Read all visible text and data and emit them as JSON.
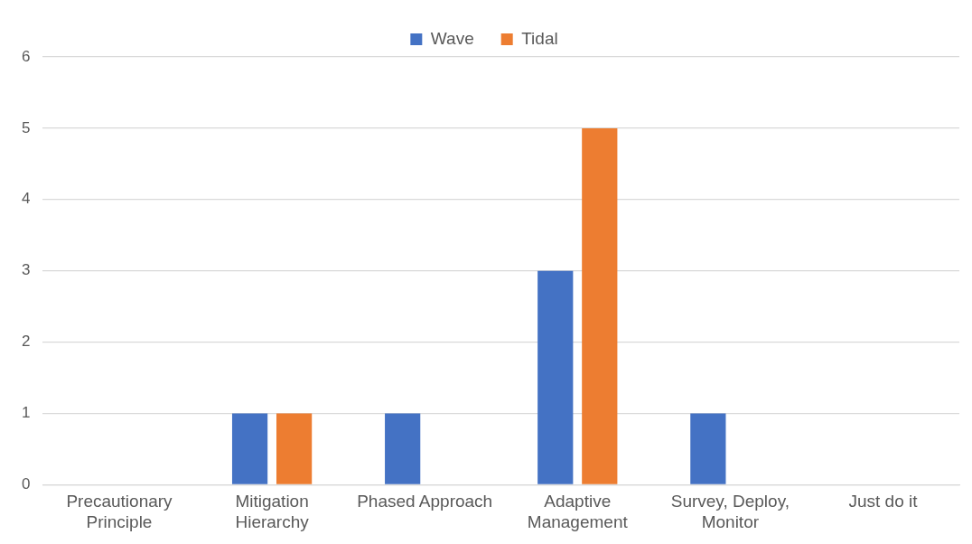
{
  "chart_data": {
    "type": "bar",
    "categories": [
      "Precautionary Principle",
      "Mitigation Hierarchy",
      "Phased Approach",
      "Adaptive Management",
      "Survey, Deploy, Monitor",
      "Just do it"
    ],
    "series": [
      {
        "name": "Wave",
        "color": "#4472c4",
        "values": [
          0,
          1,
          1,
          3,
          1,
          0
        ]
      },
      {
        "name": "Tidal",
        "color": "#ed7d31",
        "values": [
          0,
          1,
          0,
          5,
          0,
          0
        ]
      }
    ],
    "ylim": [
      0,
      6
    ],
    "yticks": [
      0,
      1,
      2,
      3,
      4,
      5,
      6
    ],
    "grid": "y",
    "legend": "top"
  }
}
